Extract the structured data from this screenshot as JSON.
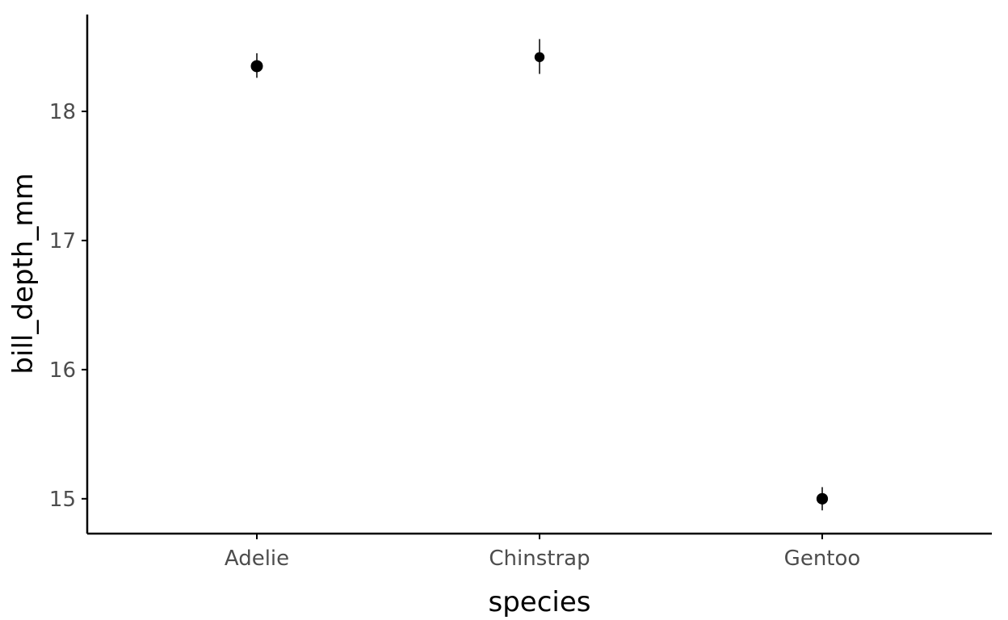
{
  "chart_data": {
    "type": "scatter",
    "xlabel": "species",
    "ylabel": "bill_depth_mm",
    "categories": [
      "Adelie",
      "Chinstrap",
      "Gentoo"
    ],
    "series": [
      {
        "values": [
          18.35,
          18.42,
          15.0
        ],
        "error_low": [
          18.26,
          18.29,
          14.91
        ],
        "error_high": [
          18.45,
          18.56,
          15.09
        ],
        "point_weight": [
          151,
          68,
          123
        ]
      }
    ],
    "y_ticks": [
      15,
      16,
      17,
      18
    ],
    "ylim": [
      14.73,
      18.75
    ],
    "grid": false,
    "legend": "none",
    "colors": {
      "point": "#000000",
      "axis": "#000000",
      "tick_text": "#4d4d4d"
    }
  }
}
